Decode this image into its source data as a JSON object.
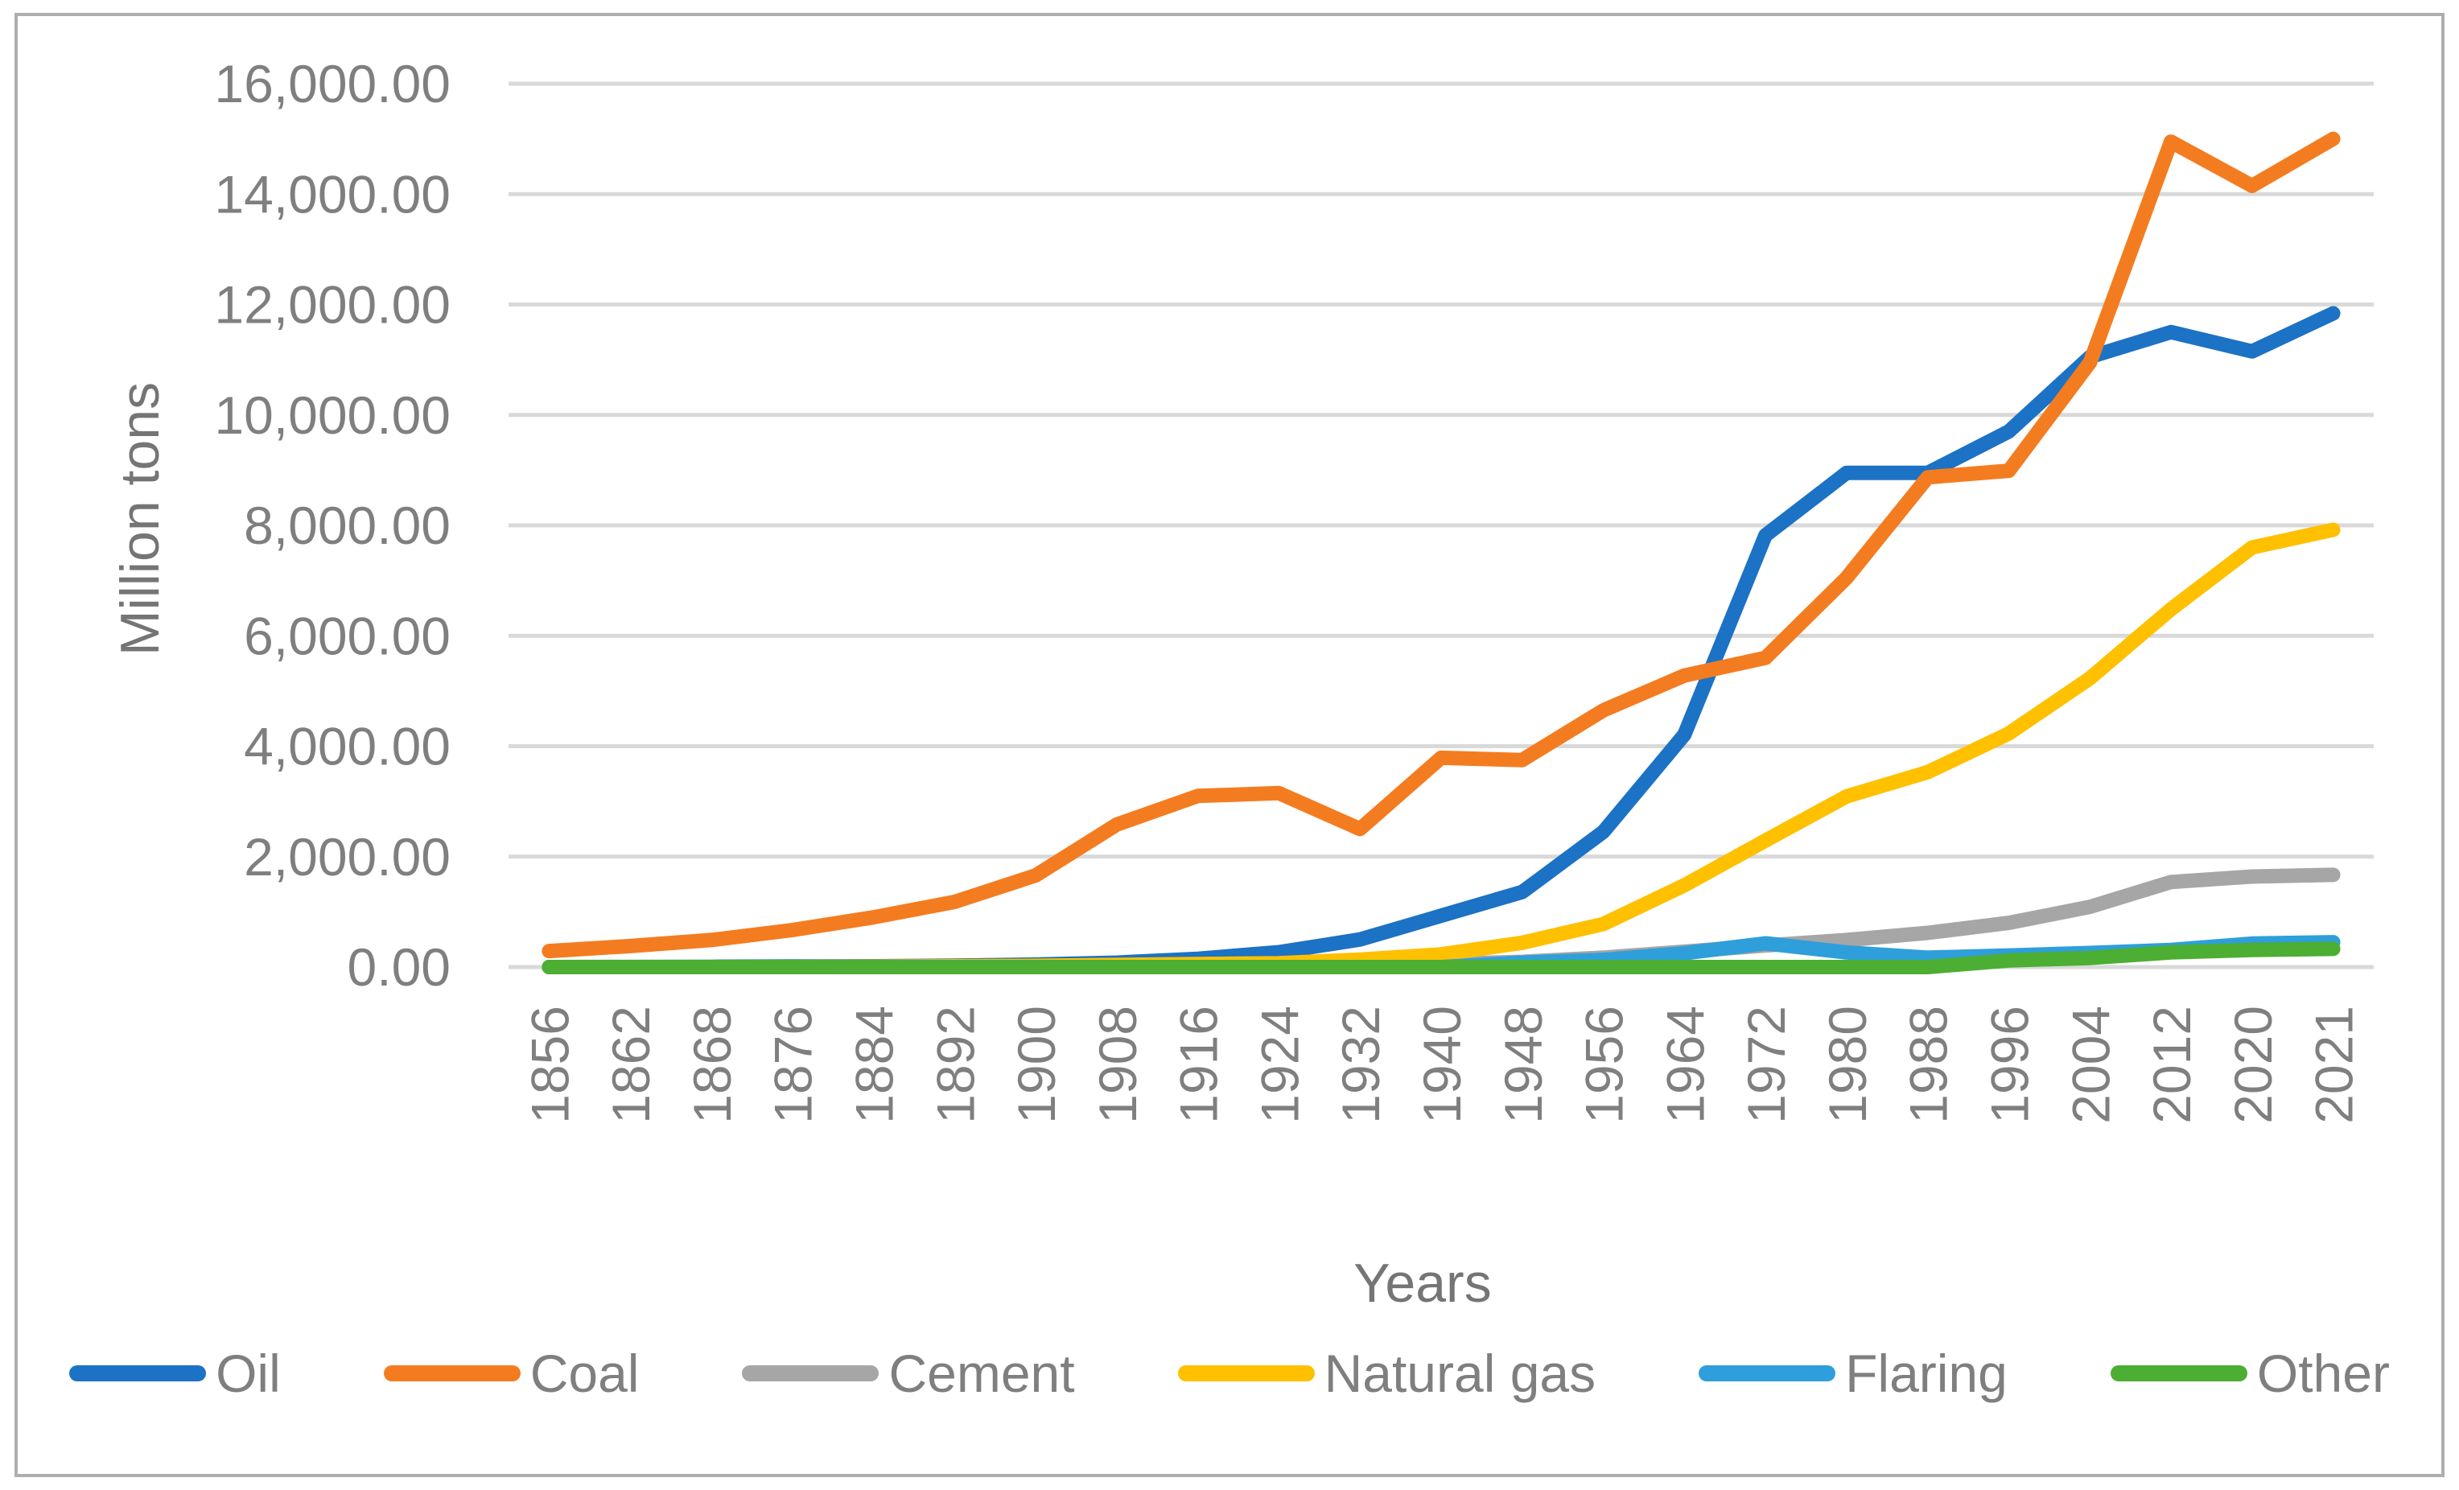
{
  "chart_data": {
    "type": "line",
    "title": "",
    "xlabel": "Years",
    "ylabel": "Million tons",
    "ylim": [
      0,
      16000
    ],
    "y_tick_step": 2000,
    "grid": "horizontal",
    "legend_position": "bottom",
    "y_ticks": [
      {
        "value": 0,
        "label": "0.00"
      },
      {
        "value": 2000,
        "label": "2,000.00"
      },
      {
        "value": 4000,
        "label": "4,000.00"
      },
      {
        "value": 6000,
        "label": "6,000.00"
      },
      {
        "value": 8000,
        "label": "8,000.00"
      },
      {
        "value": 10000,
        "label": "10,000.00"
      },
      {
        "value": 12000,
        "label": "12,000.00"
      },
      {
        "value": 14000,
        "label": "14,000.00"
      },
      {
        "value": 16000,
        "label": "16,000.00"
      }
    ],
    "categories": [
      "1856",
      "1862",
      "1868",
      "1876",
      "1884",
      "1892",
      "1900",
      "1908",
      "1916",
      "1924",
      "1932",
      "1940",
      "1948",
      "1956",
      "1964",
      "1972",
      "1980",
      "1988",
      "1996",
      "2004",
      "2012",
      "2020",
      "2021"
    ],
    "series": [
      {
        "name": "Oil",
        "color": "#1c72c4",
        "values": [
          0,
          2,
          5,
          10,
          15,
          25,
          45,
          80,
          150,
          270,
          500,
          930,
          1360,
          2450,
          4210,
          7820,
          8950,
          8950,
          9700,
          11050,
          11500,
          11150,
          11840
        ]
      },
      {
        "name": "Coal",
        "color": "#f47c20",
        "values": [
          290,
          380,
          490,
          670,
          900,
          1180,
          1660,
          2580,
          3100,
          3150,
          2500,
          3790,
          3750,
          4650,
          5280,
          5600,
          7050,
          8870,
          8990,
          10950,
          14950,
          14150,
          15000
        ]
      },
      {
        "name": "Cement",
        "color": "#a6a6a6",
        "values": [
          0,
          0,
          0,
          0,
          0,
          0,
          5,
          10,
          15,
          30,
          35,
          55,
          95,
          170,
          280,
          390,
          490,
          620,
          800,
          1090,
          1540,
          1640,
          1670
        ]
      },
      {
        "name": "Natural gas",
        "color": "#ffc000",
        "values": [
          0,
          0,
          0,
          1,
          7,
          14,
          22,
          38,
          55,
          70,
          135,
          230,
          440,
          780,
          1480,
          2290,
          3090,
          3530,
          4230,
          5230,
          6480,
          7600,
          7920
        ]
      },
      {
        "name": "Flaring",
        "color": "#2e9fda",
        "values": [
          0,
          0,
          0,
          0,
          0,
          0,
          0,
          0,
          0,
          0,
          0,
          0,
          80,
          130,
          250,
          430,
          265,
          170,
          210,
          255,
          310,
          425,
          450
        ]
      },
      {
        "name": "Other",
        "color": "#4cae32",
        "values": [
          0,
          0,
          0,
          0,
          0,
          0,
          0,
          0,
          0,
          0,
          0,
          0,
          0,
          0,
          0,
          0,
          0,
          0,
          120,
          165,
          265,
          310,
          330
        ]
      }
    ],
    "colors": {
      "gridline": "#d9d9d9",
      "axis_text": "#7f7f7f",
      "border": "#aeaeae",
      "background": "#ffffff"
    }
  }
}
